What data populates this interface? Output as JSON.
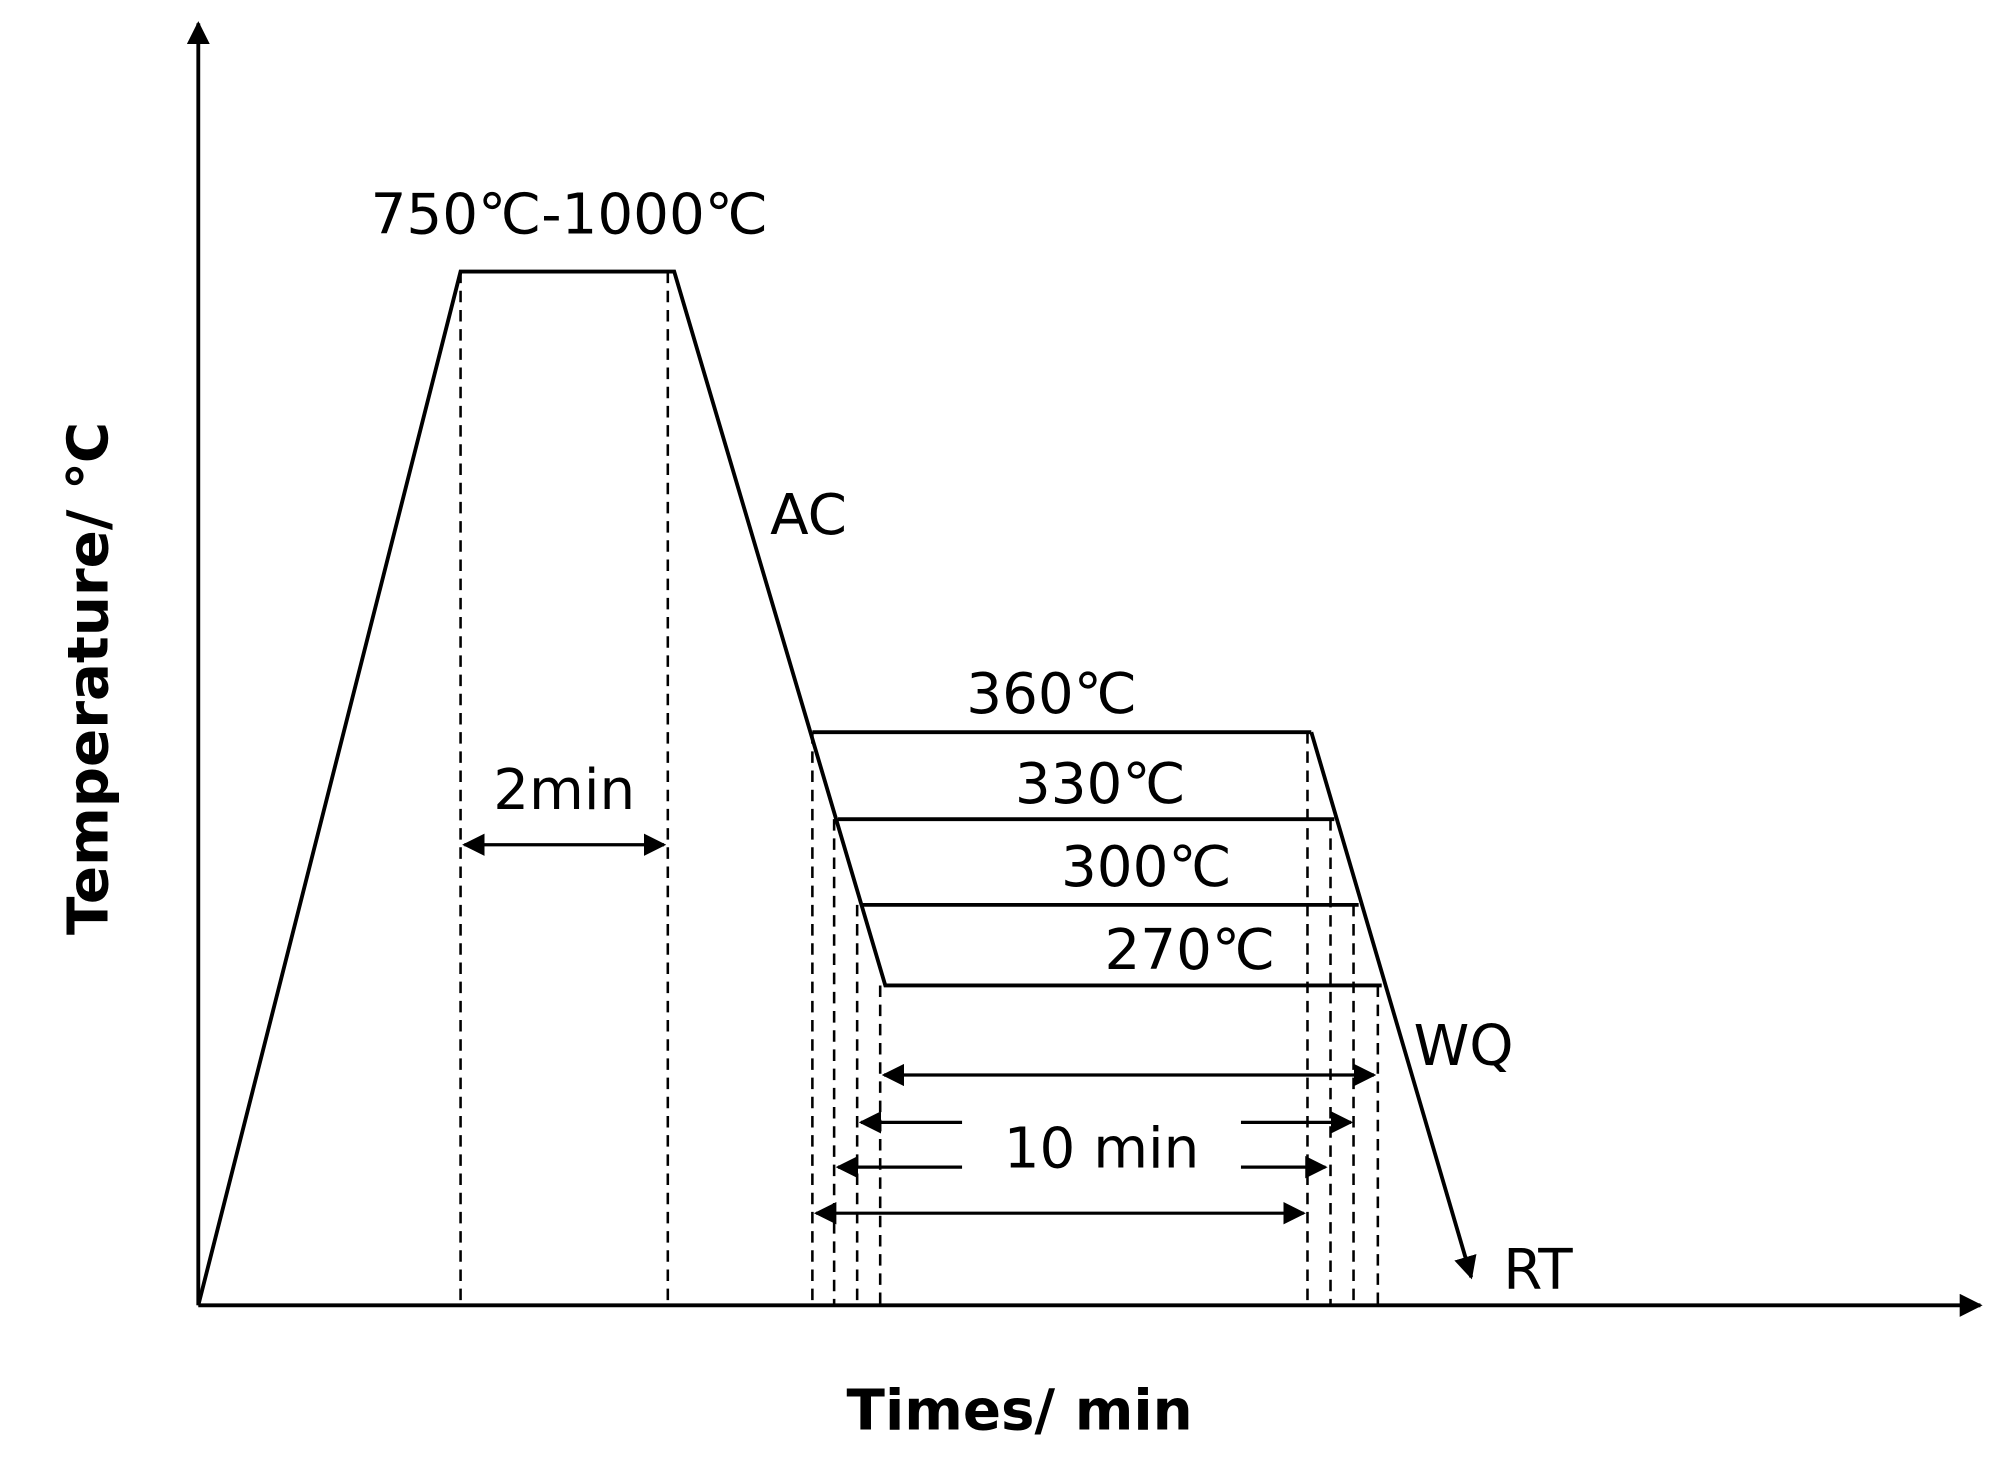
{
  "diagram": {
    "y_axis_label": "Temperature/ ℃",
    "x_axis_label": "Times/ min",
    "labels": {
      "austenitize": "750℃-1000℃",
      "air_cool": "AC",
      "hold_time": "2min",
      "t360": "360℃",
      "t330": "330℃",
      "t300": "300℃",
      "t270": "270℃",
      "water_quench": "WQ",
      "iso_time": "10 min",
      "room_temp": "RT"
    }
  }
}
